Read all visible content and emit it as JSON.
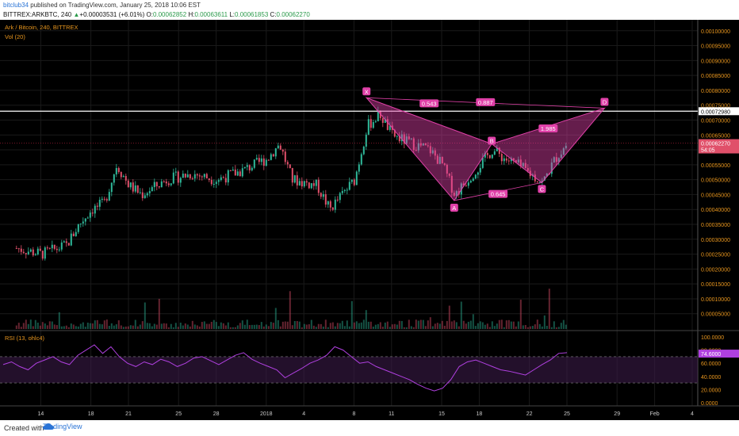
{
  "header": {
    "author": "bitclub34",
    "published_text": "published on TradingView.com, January 25, 2018 10:06 EST",
    "symbol_line": "BITTREX:ARKBTC, 240",
    "change_arrow": "▲",
    "change": "+0.00003531 (+6.01%)",
    "o_label": "O:",
    "o_value": "0.00062852",
    "h_label": "H:",
    "h_value": "0.00063611",
    "l_label": "L:",
    "l_value": "0.00061853",
    "c_label": "C:",
    "c_value": "0.00062270"
  },
  "legend": {
    "main": "Ark / Bitcoin, 240, BITTREX",
    "vol": "Vol (20)",
    "rsi": "RSI (13, ohlc4)"
  },
  "colors": {
    "up": "#2fb99a",
    "down": "#e0506a",
    "pattern": "#e040a8",
    "rsi_line": "#b040e0",
    "axis_text": "#e8961e",
    "grid": "#1a1a1a"
  },
  "footer": {
    "created_with": "Created with",
    "brand": "TradingView"
  },
  "chart_data": [
    {
      "type": "candlestick",
      "title": "Ark / Bitcoin, 240, BITTREX",
      "y_ticks": [
        "0.00100000",
        "0.00095000",
        "0.00090000",
        "0.00085000",
        "0.00080000",
        "0.00075000",
        "0.00070000",
        "0.00065000",
        "0.00060000",
        "0.00055000",
        "0.00050000",
        "0.00045000",
        "0.00040000",
        "0.00035000",
        "0.00030000",
        "0.00025000",
        "0.00020000",
        "0.00015000",
        "0.00010000",
        "0.00005000"
      ],
      "ylim": [
        2e-05,
        0.00101
      ],
      "x_ticks": [
        "14",
        "18",
        "21",
        "25",
        "28",
        "2018",
        "4",
        "8",
        "11",
        "15",
        "18",
        "22",
        "25",
        "29",
        "Feb",
        "4"
      ],
      "price_labels": {
        "resistance": "0.00072980",
        "last": "0.00062270",
        "countdown": "54:05"
      },
      "horizontal_lines": {
        "resistance": 0.0007298,
        "last": 0.0006227
      },
      "harmonic_pattern": {
        "points": {
          "X": {
            "date": "Jan 9",
            "price": 0.000775
          },
          "A": {
            "date": "Jan 16",
            "price": 0.00043
          },
          "B": {
            "date": "Jan 19",
            "price": 0.00062
          },
          "C": {
            "date": "Jan 23",
            "price": 0.00049
          },
          "D": {
            "date": "Jan 28",
            "price": 0.00074
          }
        },
        "ratios": {
          "XB": "0.543",
          "AC": "0.645",
          "BD": "1.985",
          "XD": "0.887"
        }
      },
      "price_path": [
        [
          "Dec 12",
          0.00027
        ],
        [
          "Dec 14",
          0.00025
        ],
        [
          "Dec 16",
          0.00028
        ],
        [
          "Dec 17",
          0.00035
        ],
        [
          "Dec 18",
          0.0004
        ],
        [
          "Dec 19",
          0.00042
        ],
        [
          "Dec 20",
          0.00055
        ],
        [
          "Dec 21",
          0.00048
        ],
        [
          "Dec 22",
          0.00045
        ],
        [
          "Dec 24",
          0.0005
        ],
        [
          "Dec 26",
          0.00052
        ],
        [
          "Dec 28",
          0.0005
        ],
        [
          "Dec 30",
          0.00053
        ],
        [
          "Jan 1",
          0.00057
        ],
        [
          "Jan 2",
          0.00062
        ],
        [
          "Jan 3",
          0.0005
        ],
        [
          "Jan 5",
          0.00048
        ],
        [
          "Jan 6",
          0.0004
        ],
        [
          "Jan 7",
          0.00045
        ],
        [
          "Jan 8",
          0.0005
        ],
        [
          "Jan 9",
          0.00068
        ],
        [
          "Jan 10",
          0.00072
        ],
        [
          "Jan 11",
          0.00065
        ],
        [
          "Jan 12",
          0.00063
        ],
        [
          "Jan 14",
          0.0006
        ],
        [
          "Jan 15",
          0.00055
        ],
        [
          "Jan 16",
          0.00045
        ],
        [
          "Jan 17",
          0.0005
        ],
        [
          "Jan 18",
          0.00055
        ],
        [
          "Jan 19",
          0.0006
        ],
        [
          "Jan 20",
          0.00057
        ],
        [
          "Jan 21",
          0.00055
        ],
        [
          "Jan 22",
          0.00052
        ],
        [
          "Jan 23",
          0.00049
        ],
        [
          "Jan 24",
          0.00057
        ],
        [
          "Jan 25",
          0.000623
        ]
      ]
    },
    {
      "type": "line",
      "title": "RSI (13, ohlc4)",
      "y_ticks": [
        "100.0000",
        "80.0000",
        "60.0000",
        "40.0000",
        "20.0000",
        "0.0000"
      ],
      "ylim": [
        0,
        100
      ],
      "levels": [
        70,
        30
      ],
      "last_label": "74.6000",
      "series": [
        {
          "values": [
            58,
            62,
            55,
            50,
            60,
            65,
            70,
            62,
            58,
            72,
            80,
            88,
            75,
            85,
            70,
            60,
            55,
            62,
            58,
            66,
            62,
            55,
            60,
            68,
            70,
            64,
            58,
            65,
            72,
            76,
            66,
            60,
            55,
            50,
            38,
            45,
            52,
            60,
            65,
            72,
            85,
            80,
            70,
            60,
            62,
            55,
            50,
            45,
            40,
            35,
            28,
            22,
            18,
            22,
            35,
            55,
            62,
            65,
            60,
            55,
            50,
            48,
            45,
            42,
            50,
            58,
            65,
            75,
            76
          ]
        }
      ]
    }
  ]
}
